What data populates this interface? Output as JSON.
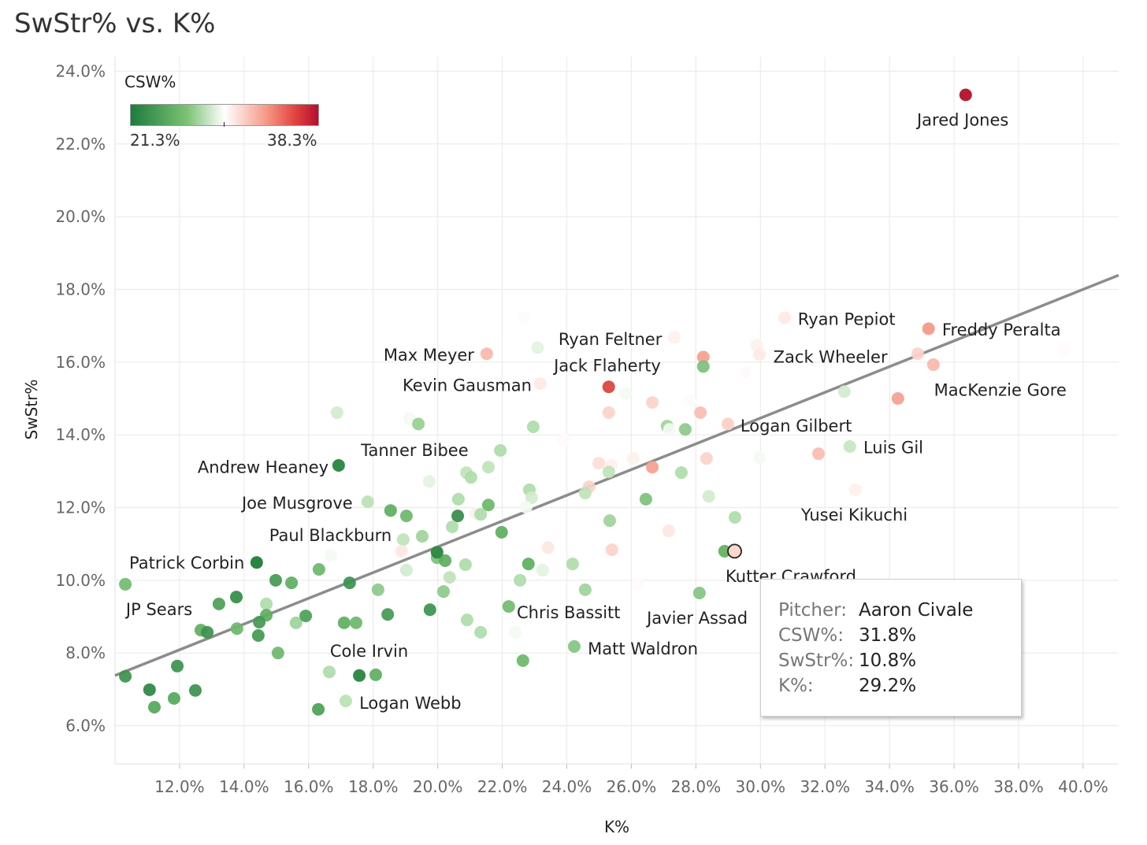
{
  "chart_data": {
    "type": "scatter",
    "title": "SwStr% vs. K%",
    "xlabel": "K%",
    "ylabel": "SwStr%",
    "xlim": [
      10,
      41.1
    ],
    "ylim": [
      4.95,
      24.4
    ],
    "xticks": [
      12,
      14,
      16,
      18,
      20,
      22,
      24,
      26,
      28,
      30,
      32,
      34,
      36,
      38,
      40
    ],
    "yticks": [
      6,
      8,
      10,
      12,
      14,
      16,
      18,
      20,
      22,
      24
    ],
    "tick_suffix": "%",
    "grid": true,
    "color_legend": {
      "title": "CSW%",
      "min_label": "21.3%",
      "max_label": "38.3%",
      "min": 21.3,
      "max": 38.3,
      "mid": 29.8,
      "placement": "top-left",
      "colors": {
        "low": "#1e7b3d",
        "mid": "#ffffff",
        "high": "#b2102f"
      }
    },
    "trendline": {
      "x": [
        10,
        41.1
      ],
      "y": [
        7.38,
        18.39
      ],
      "color": "#8c8c8c"
    },
    "named_points": [
      {
        "name": "Jared Jones",
        "k": 36.36,
        "swstr": 23.35,
        "csw": 38
      },
      {
        "name": "Ryan Pepiot",
        "k": 30.75,
        "swstr": 17.22,
        "csw": 30.8
      },
      {
        "name": "Freddy Peralta",
        "k": 35.21,
        "swstr": 16.92,
        "csw": 34
      },
      {
        "name": "MacKenzie Gore",
        "k": 35.36,
        "swstr": 15.93,
        "csw": 33
      },
      {
        "name": "Zack Wheeler",
        "k": 29.97,
        "swstr": 16.21,
        "csw": 30.8
      },
      {
        "name": "Ryan Feltner",
        "k": 27.33,
        "swstr": 16.68,
        "csw": 30.5
      },
      {
        "name": "Jack Flaherty",
        "k": 25.3,
        "swstr": 15.32,
        "csw": 36.5
      },
      {
        "name": "Max Meyer",
        "k": 21.52,
        "swstr": 16.23,
        "csw": 33
      },
      {
        "name": "Kevin Gausman",
        "k": 23.18,
        "swstr": 15.41,
        "csw": 30.8
      },
      {
        "name": "Logan Gilbert",
        "k": 28.99,
        "swstr": 14.3,
        "csw": 32
      },
      {
        "name": "Luis Gil",
        "k": 32.77,
        "swstr": 13.68,
        "csw": 28.3
      },
      {
        "name": "Yusei Kikuchi",
        "k": 32.94,
        "swstr": 12.49,
        "csw": 30.5
      },
      {
        "name": "Andrew Heaney",
        "k": 16.93,
        "swstr": 13.16,
        "csw": 22.5
      },
      {
        "name": "Joe Musgrove",
        "k": 17.83,
        "swstr": 12.16,
        "csw": 28
      },
      {
        "name": "Patrick Corbin",
        "k": 14.39,
        "swstr": 10.49,
        "csw": 22
      },
      {
        "name": "JP Sears",
        "k": 10.32,
        "swstr": 9.89,
        "csw": 26
      },
      {
        "name": "Cole Irvin",
        "k": 17.57,
        "swstr": 7.38,
        "csw": 22.5
      },
      {
        "name": "Logan Webb",
        "k": 17.15,
        "swstr": 6.68,
        "csw": 28
      },
      {
        "name": "Chris Bassitt",
        "k": 22.2,
        "swstr": 9.28,
        "csw": 26
      },
      {
        "name": "Matt Waldron",
        "k": 24.23,
        "swstr": 8.18,
        "csw": 26.5
      },
      {
        "name": "Javier Assad",
        "k": 28.11,
        "swstr": 9.65,
        "csw": 26.5
      },
      {
        "name": "Kutter Crawford",
        "k": 28.89,
        "swstr": 10.8,
        "csw": 25.5
      },
      {
        "name": "Tanner Bibee",
        "k": 19.4,
        "swstr": 14.3,
        "csw": 27
      },
      {
        "name": "Paul Blackburn",
        "k": 19.98,
        "swstr": 10.77,
        "csw": 22.5
      },
      {
        "name": "Aaron Civale",
        "k": 29.2,
        "swstr": 10.8,
        "csw": 31.8,
        "highlighted": true
      }
    ],
    "annotations": [
      {
        "text": "Jared Jones",
        "x": 34.85,
        "y": 22.66
      },
      {
        "text": "Ryan Pepiot",
        "x": 31.16,
        "y": 17.18
      },
      {
        "text": "Freddy Peralta",
        "x": 35.63,
        "y": 16.88
      },
      {
        "text": "Zack Wheeler",
        "x": 30.4,
        "y": 16.14
      },
      {
        "text": "MacKenzie Gore",
        "x": 35.38,
        "y": 15.23
      },
      {
        "text": "Ryan Feltner",
        "x": 23.74,
        "y": 16.62
      },
      {
        "text": "Jack Flaherty",
        "x": 23.6,
        "y": 15.9
      },
      {
        "text": "Max Meyer",
        "x": 18.32,
        "y": 16.19
      },
      {
        "text": "Kevin Gausman",
        "x": 18.91,
        "y": 15.36
      },
      {
        "text": "Logan Gilbert",
        "x": 29.38,
        "y": 14.24
      },
      {
        "text": "Luis Gil",
        "x": 33.19,
        "y": 13.65
      },
      {
        "text": "Yusei Kikuchi",
        "x": 31.26,
        "y": 11.79
      },
      {
        "text": "Tanner Bibee",
        "x": 17.62,
        "y": 13.57
      },
      {
        "text": "Andrew Heaney",
        "x": 12.56,
        "y": 13.11
      },
      {
        "text": "Joe Musgrove",
        "x": 13.93,
        "y": 12.12
      },
      {
        "text": "Paul Blackburn",
        "x": 14.78,
        "y": 11.23
      },
      {
        "text": "Patrick Corbin",
        "x": 10.44,
        "y": 10.47
      },
      {
        "text": "JP Sears",
        "x": 10.34,
        "y": 9.19
      },
      {
        "text": "Cole Irvin",
        "x": 16.66,
        "y": 8.05
      },
      {
        "text": "Logan Webb",
        "x": 17.57,
        "y": 6.62
      },
      {
        "text": "Chris Bassitt",
        "x": 22.45,
        "y": 9.11
      },
      {
        "text": "Matt Waldron",
        "x": 24.65,
        "y": 8.11
      },
      {
        "text": "Javier Assad",
        "x": 26.48,
        "y": 8.96
      },
      {
        "text": "Kutter Crawford",
        "x": 28.92,
        "y": 10.1
      }
    ],
    "points": [
      [
        39.39,
        16.32,
        30
      ],
      [
        34.87,
        16.23,
        32
      ],
      [
        34.26,
        15.0,
        34
      ],
      [
        31.8,
        13.48,
        33
      ],
      [
        29.97,
        13.37,
        29.5
      ],
      [
        32.6,
        15.19,
        28.5
      ],
      [
        29.53,
        15.71,
        30
      ],
      [
        29.89,
        16.47,
        30.5
      ],
      [
        28.23,
        16.14,
        34
      ],
      [
        28.23,
        15.88,
        26
      ],
      [
        22.69,
        17.23,
        30
      ],
      [
        23.1,
        16.4,
        29
      ],
      [
        25.82,
        15.13,
        29.5
      ],
      [
        25.3,
        14.61,
        32
      ],
      [
        26.65,
        14.89,
        32
      ],
      [
        27.82,
        14.93,
        30
      ],
      [
        28.14,
        14.61,
        33
      ],
      [
        27.11,
        14.24,
        27
      ],
      [
        27.67,
        14.15,
        26.5
      ],
      [
        27.18,
        14.15,
        29.5
      ],
      [
        23.91,
        13.87,
        30
      ],
      [
        22.96,
        14.22,
        27.5
      ],
      [
        21.94,
        13.57,
        27.5
      ],
      [
        21.57,
        13.11,
        28
      ],
      [
        20.89,
        12.96,
        28
      ],
      [
        21.03,
        12.83,
        27.5
      ],
      [
        19.13,
        14.45,
        29.5
      ],
      [
        16.88,
        14.61,
        28.5
      ],
      [
        19.74,
        12.72,
        29
      ],
      [
        24.99,
        13.22,
        31.5
      ],
      [
        25.38,
        13.16,
        30.5
      ],
      [
        25.3,
        12.98,
        28
      ],
      [
        26.06,
        13.35,
        30.5
      ],
      [
        26.65,
        13.11,
        34
      ],
      [
        27.55,
        12.96,
        27.5
      ],
      [
        28.33,
        13.35,
        32
      ],
      [
        24.69,
        12.57,
        32
      ],
      [
        24.57,
        12.4,
        28
      ],
      [
        26.45,
        12.23,
        26
      ],
      [
        28.4,
        12.31,
        28.5
      ],
      [
        22.84,
        12.49,
        27.5
      ],
      [
        22.91,
        12.27,
        28.5
      ],
      [
        22.74,
        12.01,
        29.5
      ],
      [
        20.64,
        12.23,
        27.5
      ],
      [
        21.57,
        12.07,
        25.5
      ],
      [
        21.18,
        11.84,
        30.5
      ],
      [
        21.33,
        11.81,
        27.5
      ],
      [
        20.62,
        11.77,
        22.5
      ],
      [
        20.45,
        11.47,
        27.5
      ],
      [
        18.54,
        11.92,
        25
      ],
      [
        19.03,
        11.77,
        25.5
      ],
      [
        19.52,
        11.21,
        27
      ],
      [
        18.93,
        11.12,
        28
      ],
      [
        18.88,
        10.8,
        31
      ],
      [
        21.98,
        11.32,
        25
      ],
      [
        19.98,
        10.62,
        26
      ],
      [
        20.23,
        10.54,
        25
      ],
      [
        20.86,
        10.43,
        27.5
      ],
      [
        22.81,
        10.45,
        25
      ],
      [
        23.25,
        10.28,
        29
      ],
      [
        24.18,
        10.45,
        27.5
      ],
      [
        23.42,
        10.9,
        31
      ],
      [
        25.4,
        10.84,
        32
      ],
      [
        27.16,
        11.36,
        31
      ],
      [
        25.33,
        11.64,
        27
      ],
      [
        29.21,
        11.73,
        27.5
      ],
      [
        26.21,
        9.89,
        30
      ],
      [
        24.57,
        9.74,
        27
      ],
      [
        22.55,
        10.0,
        27.5
      ],
      [
        20.37,
        10.08,
        28
      ],
      [
        20.18,
        9.69,
        26.5
      ],
      [
        19.03,
        10.28,
        28.5
      ],
      [
        18.15,
        9.74,
        26.5
      ],
      [
        17.27,
        9.93,
        23
      ],
      [
        16.32,
        10.3,
        25.5
      ],
      [
        16.69,
        10.69,
        29.5
      ],
      [
        14.98,
        10.0,
        23.5
      ],
      [
        15.47,
        9.93,
        25
      ],
      [
        13.76,
        9.54,
        22.5
      ],
      [
        13.22,
        9.35,
        24
      ],
      [
        14.69,
        9.35,
        27.5
      ],
      [
        14.69,
        9.04,
        25
      ],
      [
        14.47,
        8.85,
        23.5
      ],
      [
        15.61,
        8.83,
        27
      ],
      [
        15.91,
        9.02,
        24
      ],
      [
        13.78,
        8.67,
        25.5
      ],
      [
        12.66,
        8.63,
        25
      ],
      [
        12.86,
        8.57,
        23
      ],
      [
        14.44,
        8.48,
        23.5
      ],
      [
        15.05,
        8.0,
        25.5
      ],
      [
        17.1,
        8.83,
        25
      ],
      [
        17.47,
        8.83,
        25.5
      ],
      [
        18.45,
        9.06,
        23.5
      ],
      [
        19.76,
        9.19,
        23
      ],
      [
        20.91,
        8.91,
        27.5
      ],
      [
        21.33,
        8.57,
        27.5
      ],
      [
        22.4,
        8.57,
        29.5
      ],
      [
        22.64,
        7.79,
        25.5
      ],
      [
        10.32,
        7.36,
        23
      ],
      [
        11.07,
        6.99,
        22
      ],
      [
        11.93,
        7.64,
        23
      ],
      [
        11.83,
        6.75,
        24.5
      ],
      [
        12.49,
        6.97,
        23
      ],
      [
        11.22,
        6.51,
        24.5
      ],
      [
        16.3,
        6.45,
        24
      ],
      [
        16.64,
        7.48,
        27.5
      ],
      [
        18.08,
        7.4,
        25
      ]
    ]
  },
  "tooltip": {
    "rows": [
      {
        "key": "Pitcher:",
        "value": "Aaron Civale"
      },
      {
        "key": "CSW%:",
        "value": "31.8%"
      },
      {
        "key": "SwStr%:",
        "value": "10.8%"
      },
      {
        "key": "K%:",
        "value": "29.2%"
      }
    ]
  }
}
